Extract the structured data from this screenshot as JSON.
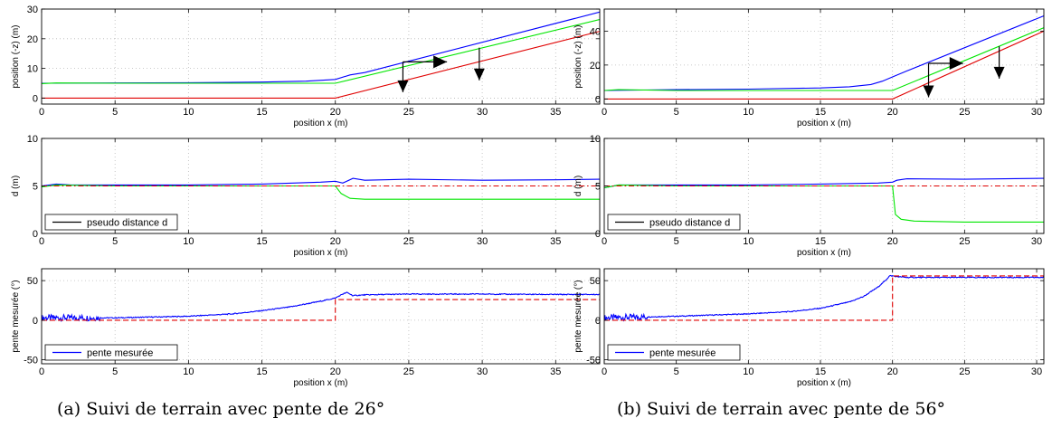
{
  "captions": {
    "a": "(a) Suivi de terrain avec pente de 26°",
    "b": "(b) Suivi de terrain avec pente de 56°"
  },
  "colors": {
    "blue": "#0000ff",
    "green": "#00e600",
    "red": "#e00000",
    "grid": "#b8b8b8"
  },
  "chart_data": [
    {
      "panel": "a-top",
      "type": "line",
      "xlabel": "position x (m)",
      "ylabel": "position (-z) (m)",
      "xlim": [
        0,
        38
      ],
      "ylim": [
        -2,
        30
      ],
      "xticks": [
        0,
        5,
        10,
        15,
        20,
        25,
        30,
        35
      ],
      "yticks": [
        0,
        10,
        20,
        30
      ],
      "grid": true,
      "series": [
        {
          "color": "blue",
          "style": "solid",
          "points": [
            [
              0,
              5
            ],
            [
              5,
              5.1
            ],
            [
              10,
              5.2
            ],
            [
              15,
              5.4
            ],
            [
              18,
              5.7
            ],
            [
              20,
              6.3
            ],
            [
              21,
              7.8
            ],
            [
              22,
              8.6
            ],
            [
              38,
              29
            ]
          ]
        },
        {
          "color": "green",
          "style": "solid",
          "points": [
            [
              0,
              4.9
            ],
            [
              1,
              5.1
            ],
            [
              5,
              5
            ],
            [
              10,
              5
            ],
            [
              15,
              5
            ],
            [
              20,
              5
            ],
            [
              38,
              26.5
            ]
          ]
        },
        {
          "color": "red",
          "style": "solid",
          "points": [
            [
              0,
              0
            ],
            [
              20,
              0
            ],
            [
              38,
              22.5
            ]
          ]
        }
      ],
      "arrows": [
        {
          "from": [
            24.6,
            12.2
          ],
          "to": [
            24.6,
            2
          ],
          "head": "down"
        },
        {
          "from": [
            24.6,
            12.2
          ],
          "to": [
            27.6,
            12.2
          ],
          "head": "right"
        },
        {
          "from": [
            29.8,
            17
          ],
          "to": [
            29.8,
            6
          ],
          "head": "down"
        }
      ]
    },
    {
      "panel": "a-mid",
      "type": "line",
      "xlabel": "position x (m)",
      "ylabel": "d (m)",
      "xlim": [
        0,
        38
      ],
      "ylim": [
        0,
        10
      ],
      "xticks": [
        0,
        5,
        10,
        15,
        20,
        25,
        30,
        35
      ],
      "yticks": [
        0,
        5,
        10
      ],
      "grid": true,
      "legend": {
        "placement": "bottom-left",
        "entries": [
          {
            "label": "pseudo distance d",
            "color": "black"
          }
        ]
      },
      "series": [
        {
          "color": "blue",
          "style": "solid",
          "points": [
            [
              0,
              5
            ],
            [
              1,
              5.2
            ],
            [
              2,
              5.1
            ],
            [
              5,
              5.1
            ],
            [
              10,
              5.1
            ],
            [
              15,
              5.2
            ],
            [
              19,
              5.4
            ],
            [
              20,
              5.5
            ],
            [
              20.5,
              5.3
            ],
            [
              21.2,
              5.8
            ],
            [
              22,
              5.6
            ],
            [
              25,
              5.7
            ],
            [
              30,
              5.6
            ],
            [
              35,
              5.65
            ],
            [
              38,
              5.7
            ]
          ]
        },
        {
          "color": "green",
          "style": "solid",
          "points": [
            [
              0,
              4.9
            ],
            [
              1,
              5.1
            ],
            [
              5,
              5
            ],
            [
              10,
              5
            ],
            [
              15,
              5
            ],
            [
              20,
              5
            ],
            [
              20.4,
              4.2
            ],
            [
              21,
              3.7
            ],
            [
              22,
              3.6
            ],
            [
              38,
              3.6
            ]
          ]
        },
        {
          "color": "red",
          "style": "dashdot",
          "points": [
            [
              0,
              5
            ],
            [
              38,
              5
            ]
          ]
        }
      ]
    },
    {
      "panel": "a-bot",
      "type": "line",
      "xlabel": "position x (m)",
      "ylabel": "pente mesurée (°)",
      "xlim": [
        0,
        38
      ],
      "ylim": [
        -55,
        65
      ],
      "xticks": [
        0,
        5,
        10,
        15,
        20,
        25,
        30,
        35
      ],
      "yticks": [
        -50,
        0,
        50
      ],
      "grid": true,
      "legend": {
        "placement": "bottom-left",
        "entries": [
          {
            "label": "pente mesurée",
            "color": "blue"
          }
        ]
      },
      "series": [
        {
          "color": "blue",
          "style": "solid",
          "noise_until": 4,
          "points": [
            [
              0,
              3
            ],
            [
              5,
              3
            ],
            [
              10,
              5
            ],
            [
              13,
              8
            ],
            [
              15,
              12
            ],
            [
              17,
              17
            ],
            [
              19,
              24
            ],
            [
              20,
              28
            ],
            [
              20.5,
              33
            ],
            [
              20.8,
              35
            ],
            [
              21.2,
              31
            ],
            [
              22,
              32
            ],
            [
              25,
              33
            ],
            [
              30,
              33
            ],
            [
              35,
              32.5
            ],
            [
              38,
              32.5
            ]
          ]
        },
        {
          "color": "red",
          "style": "dashed",
          "points": [
            [
              0,
              0
            ],
            [
              20,
              0
            ],
            [
              20,
              26
            ],
            [
              38,
              26
            ]
          ]
        }
      ]
    },
    {
      "panel": "b-top",
      "type": "line",
      "xlabel": "position x (m)",
      "ylabel": "position (-z) (m)",
      "xlim": [
        0,
        30.5
      ],
      "ylim": [
        -3,
        53
      ],
      "xticks": [
        0,
        5,
        10,
        15,
        20,
        25,
        30
      ],
      "yticks": [
        0,
        20,
        40
      ],
      "grid": true,
      "series": [
        {
          "color": "blue",
          "style": "solid",
          "points": [
            [
              0,
              5
            ],
            [
              5,
              5.5
            ],
            [
              10,
              5.8
            ],
            [
              15,
              6.5
            ],
            [
              17,
              7.2
            ],
            [
              18.5,
              8.5
            ],
            [
              19.3,
              10.5
            ],
            [
              20,
              13
            ],
            [
              21,
              16.5
            ],
            [
              30.5,
              49
            ]
          ]
        },
        {
          "color": "green",
          "style": "solid",
          "points": [
            [
              0,
              5
            ],
            [
              1,
              5.5
            ],
            [
              5,
              5
            ],
            [
              10,
              5
            ],
            [
              15,
              5
            ],
            [
              20,
              5
            ],
            [
              30.5,
              42
            ]
          ]
        },
        {
          "color": "red",
          "style": "solid",
          "points": [
            [
              0,
              0
            ],
            [
              20,
              0
            ],
            [
              30.5,
              40
            ]
          ]
        }
      ],
      "arrows": [
        {
          "from": [
            22.5,
            21
          ],
          "to": [
            22.5,
            1
          ],
          "head": "down"
        },
        {
          "from": [
            22.5,
            21
          ],
          "to": [
            24.9,
            21
          ],
          "head": "right"
        },
        {
          "from": [
            27.4,
            31
          ],
          "to": [
            27.4,
            12
          ],
          "head": "down"
        }
      ]
    },
    {
      "panel": "b-mid",
      "type": "line",
      "xlabel": "position x (m)",
      "ylabel": "d (m)",
      "xlim": [
        0,
        30.5
      ],
      "ylim": [
        0,
        10
      ],
      "xticks": [
        0,
        5,
        10,
        15,
        20,
        25,
        30
      ],
      "yticks": [
        0,
        5,
        10
      ],
      "grid": true,
      "legend": {
        "placement": "bottom-left",
        "entries": [
          {
            "label": "pseudo distance d",
            "color": "black"
          }
        ]
      },
      "series": [
        {
          "color": "blue",
          "style": "solid",
          "points": [
            [
              0,
              4.8
            ],
            [
              1,
              5.1
            ],
            [
              5,
              5.1
            ],
            [
              10,
              5.1
            ],
            [
              15,
              5.2
            ],
            [
              19,
              5.3
            ],
            [
              20,
              5.4
            ],
            [
              20.3,
              5.6
            ],
            [
              21,
              5.75
            ],
            [
              25,
              5.7
            ],
            [
              30.5,
              5.8
            ]
          ]
        },
        {
          "color": "green",
          "style": "solid",
          "points": [
            [
              0,
              4.8
            ],
            [
              1,
              5.1
            ],
            [
              5,
              5
            ],
            [
              10,
              5
            ],
            [
              15,
              5
            ],
            [
              20,
              5
            ],
            [
              20.2,
              2
            ],
            [
              20.6,
              1.5
            ],
            [
              21.5,
              1.3
            ],
            [
              25,
              1.2
            ],
            [
              30.5,
              1.2
            ]
          ]
        },
        {
          "color": "red",
          "style": "dashdot",
          "points": [
            [
              0,
              5
            ],
            [
              30.5,
              5
            ]
          ]
        }
      ]
    },
    {
      "panel": "b-bot",
      "type": "line",
      "xlabel": "position x (m)",
      "ylabel": "pente mesurée (°)",
      "xlim": [
        0,
        30.5
      ],
      "ylim": [
        -55,
        65
      ],
      "xticks": [
        0,
        5,
        10,
        15,
        20,
        25,
        30
      ],
      "yticks": [
        -50,
        0,
        50
      ],
      "grid": true,
      "legend": {
        "placement": "bottom-left",
        "entries": [
          {
            "label": "pente mesurée",
            "color": "blue"
          }
        ]
      },
      "series": [
        {
          "color": "blue",
          "style": "solid",
          "noise_until": 3,
          "points": [
            [
              0,
              3
            ],
            [
              5,
              5
            ],
            [
              10,
              8
            ],
            [
              13,
              11
            ],
            [
              15,
              15
            ],
            [
              17,
              23
            ],
            [
              18,
              30
            ],
            [
              19,
              42
            ],
            [
              19.5,
              50
            ],
            [
              19.8,
              56
            ],
            [
              20,
              56
            ],
            [
              20.3,
              55
            ],
            [
              21,
              54
            ],
            [
              25,
              54
            ],
            [
              30.5,
              54
            ]
          ]
        },
        {
          "color": "red",
          "style": "dashed",
          "points": [
            [
              0,
              0
            ],
            [
              20,
              0
            ],
            [
              20,
              56
            ],
            [
              30.5,
              56
            ]
          ]
        }
      ]
    }
  ]
}
